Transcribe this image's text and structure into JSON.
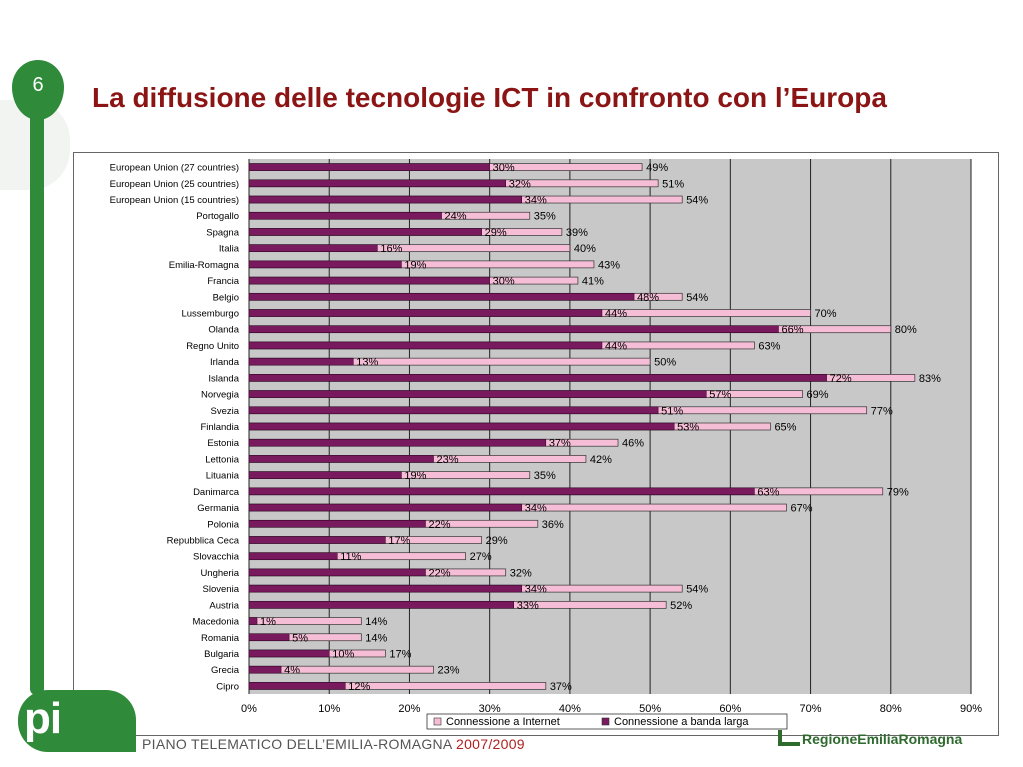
{
  "slide": {
    "number": "6",
    "title": "La diffusione delle tecnologie ICT in confronto con l’Europa"
  },
  "footer": {
    "program": "PIANO TELEMATICO DELL’EMILIA-ROMAGNA ",
    "years": "2007/2009",
    "logo": "pi",
    "region_logo": "RegioneEmiliaRomagna"
  },
  "colors": {
    "internet": "#f5bdd6",
    "broadband": "#7a1a5e",
    "plot_bg": "#c8c8c8",
    "title": "#8b1414",
    "brand": "#2f8a3a"
  },
  "chart_data": {
    "type": "bar",
    "orientation": "horizontal",
    "title": "",
    "xlabel": "",
    "ylabel": "",
    "xlim": [
      0,
      90
    ],
    "x_ticks": [
      "0%",
      "10%",
      "20%",
      "30%",
      "40%",
      "50%",
      "60%",
      "70%",
      "80%",
      "90%"
    ],
    "grid": true,
    "legend_position": "bottom",
    "categories": [
      "European Union (27 countries)",
      "European Union (25 countries)",
      "European Union (15 countries)",
      "Portogallo",
      "Spagna",
      "Italia",
      "Emilia-Romagna",
      "Francia",
      "Belgio",
      "Lussemburgo",
      "Olanda",
      "Regno Unito",
      "Irlanda",
      "Islanda",
      "Norvegia",
      "Svezia",
      "Finlandia",
      "Estonia",
      "Lettonia",
      "Lituania",
      "Danimarca",
      "Germania",
      "Polonia",
      "Repubblica Ceca",
      "Slovacchia",
      "Ungheria",
      "Slovenia",
      "Austria",
      "Macedonia",
      "Romania",
      "Bulgaria",
      "Grecia",
      "Cipro"
    ],
    "series": [
      {
        "name": "Connessione a Internet",
        "values": [
          49,
          51,
          54,
          35,
          39,
          40,
          43,
          41,
          54,
          70,
          80,
          63,
          50,
          83,
          69,
          77,
          65,
          46,
          42,
          35,
          79,
          67,
          36,
          29,
          27,
          32,
          54,
          52,
          14,
          14,
          17,
          23,
          37
        ],
        "labels": [
          "49%",
          "51%",
          "54%",
          "35%",
          "39%",
          "40%",
          "43%",
          "41%",
          "54%",
          "70%",
          "80%",
          "63%",
          "50%",
          "83%",
          "69%",
          "77%",
          "65%",
          "46%",
          "42%",
          "35%",
          "79%",
          "67%",
          "36%",
          "29%",
          "27%",
          "32%",
          "54%",
          "52%",
          "14%",
          "14%",
          "17%",
          "23%",
          "37%"
        ]
      },
      {
        "name": "Connessione a banda larga",
        "values": [
          30,
          32,
          34,
          24,
          29,
          16,
          19,
          30,
          48,
          44,
          66,
          44,
          13,
          72,
          57,
          51,
          53,
          37,
          23,
          19,
          63,
          34,
          22,
          17,
          11,
          22,
          34,
          33,
          1,
          5,
          10,
          4,
          12
        ],
        "labels": [
          "30%",
          "32%",
          "34%",
          "24%",
          "29%",
          "16%",
          "19%",
          "30%",
          "48%",
          "44%",
          "66%",
          "44%",
          "13%",
          "72%",
          "57%",
          "51%",
          "53%",
          "37%",
          "23%",
          "19%",
          "63%",
          "34%",
          "22%",
          "17%",
          "11%",
          "22%",
          "34%",
          "33%",
          "1%",
          "5%",
          "10%",
          "4%",
          "12%"
        ]
      }
    ]
  }
}
